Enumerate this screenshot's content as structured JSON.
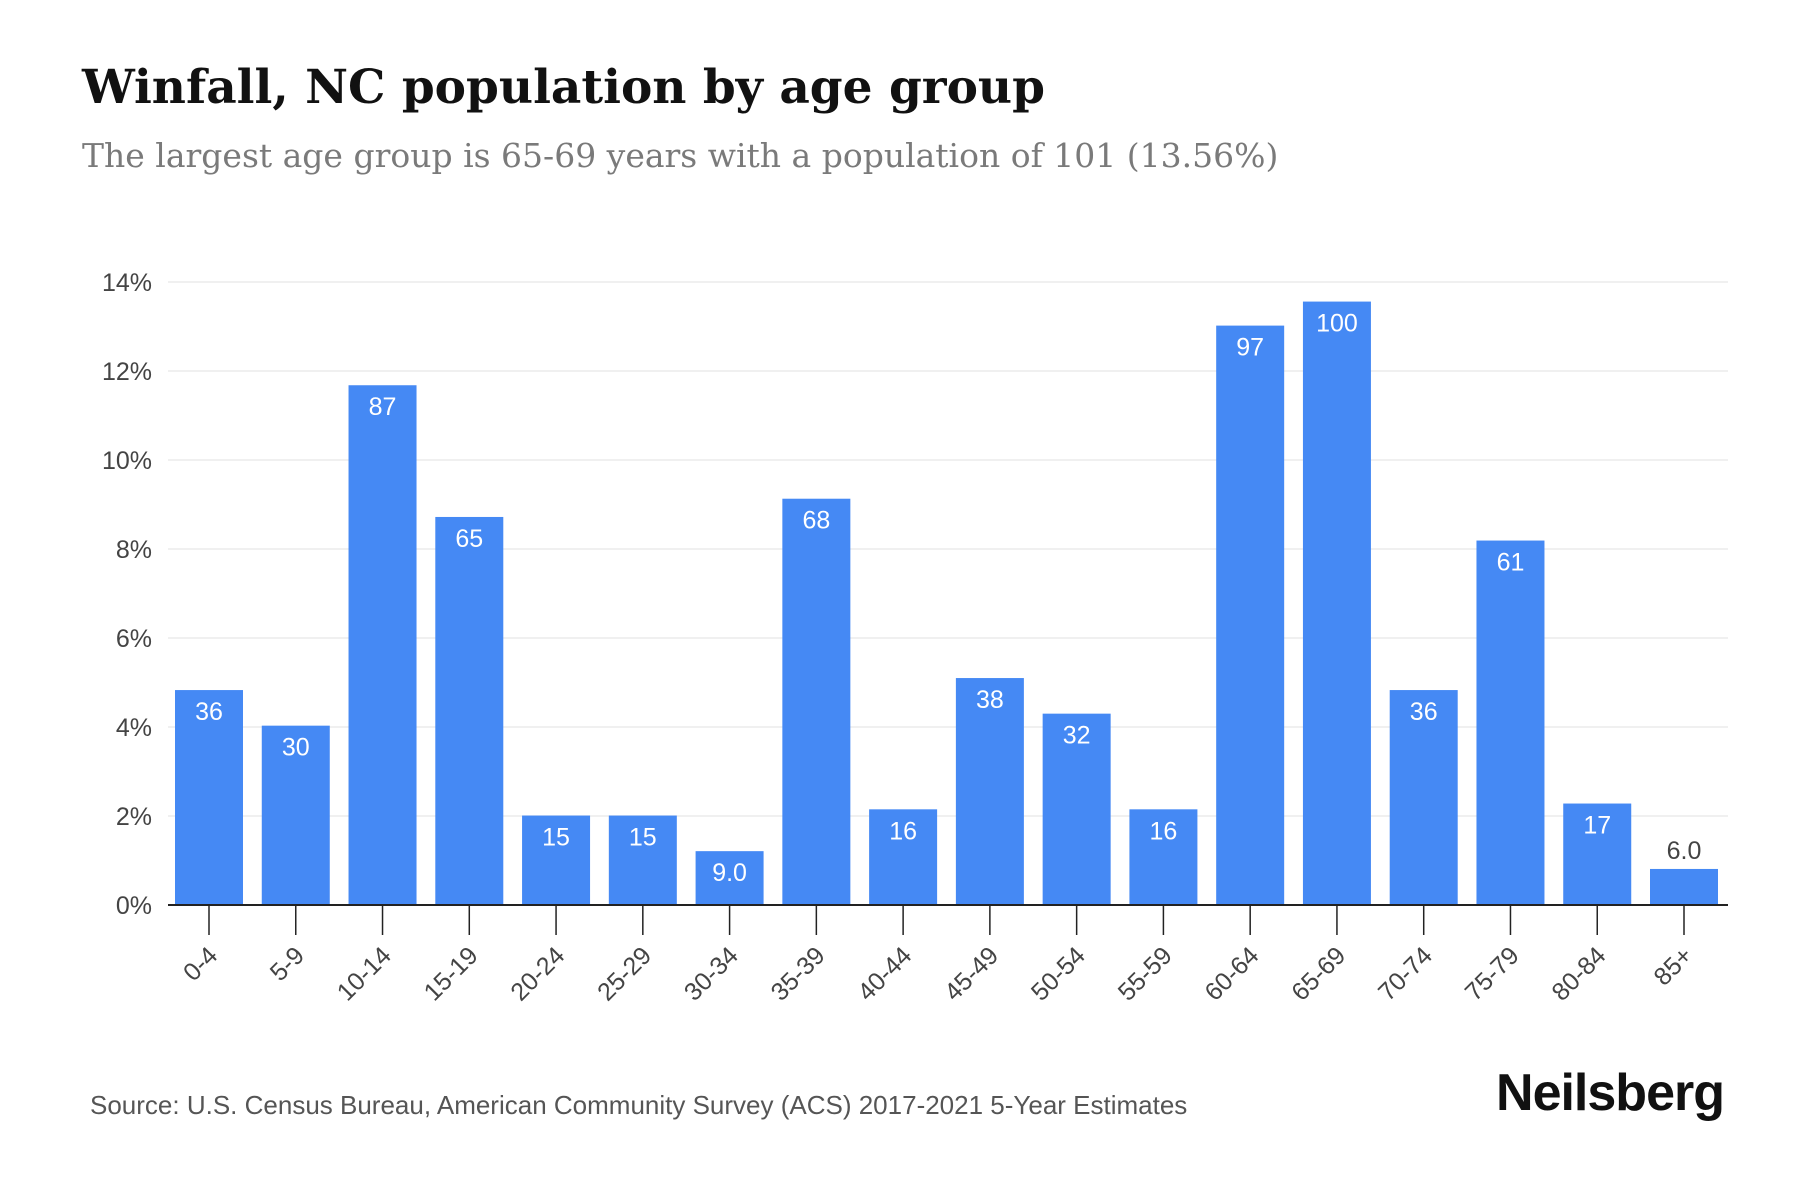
{
  "header": {
    "title": "Winfall, NC population by age group",
    "subtitle": "The largest age group is 65-69 years with a population of 101 (13.56%)"
  },
  "footer": {
    "source": "Source: U.S. Census Bureau, American Community Survey (ACS) 2017-2021 5-Year Estimates",
    "brand": "Neilsberg"
  },
  "colors": {
    "bar": "#4589f4",
    "grid": "#ebebeb",
    "axis": "#222222",
    "tick_text": "#444444",
    "bar_label": "#ffffff",
    "outside_label": "#444444"
  },
  "chart_data": {
    "type": "bar",
    "categories": [
      "0-4",
      "5-9",
      "10-14",
      "15-19",
      "20-24",
      "25-29",
      "30-34",
      "35-39",
      "40-44",
      "45-49",
      "50-54",
      "55-59",
      "60-64",
      "65-69",
      "70-74",
      "75-79",
      "80-84",
      "85+"
    ],
    "values": [
      4.83,
      4.03,
      11.68,
      8.72,
      2.01,
      2.01,
      1.21,
      9.13,
      2.15,
      5.1,
      4.3,
      2.15,
      13.02,
      13.56,
      4.83,
      8.19,
      2.28,
      0.81
    ],
    "data_labels": [
      "36",
      "30",
      "87",
      "65",
      "15",
      "15",
      "9.0",
      "68",
      "16",
      "38",
      "32",
      "16",
      "97",
      "100",
      "36",
      "61",
      "17",
      "6.0"
    ],
    "y_ticks": [
      0,
      2,
      4,
      6,
      8,
      10,
      12,
      14
    ],
    "y_tick_labels": [
      "0%",
      "2%",
      "4%",
      "6%",
      "8%",
      "10%",
      "12%",
      "14%"
    ],
    "ylim": [
      0,
      14
    ],
    "xlabel": "",
    "ylabel": "",
    "grid": true,
    "legend": "none"
  }
}
